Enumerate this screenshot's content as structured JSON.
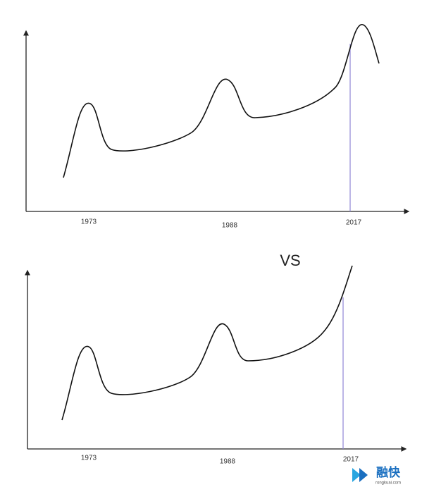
{
  "top_chart": {
    "x_labels": [
      "1973",
      "1988",
      "2017"
    ]
  },
  "vs": "VS",
  "bottom_chart": {
    "x_labels": [
      "1973",
      "1988",
      "2017"
    ]
  },
  "logo": {
    "name": "融快",
    "url": "rongkuai.com"
  }
}
